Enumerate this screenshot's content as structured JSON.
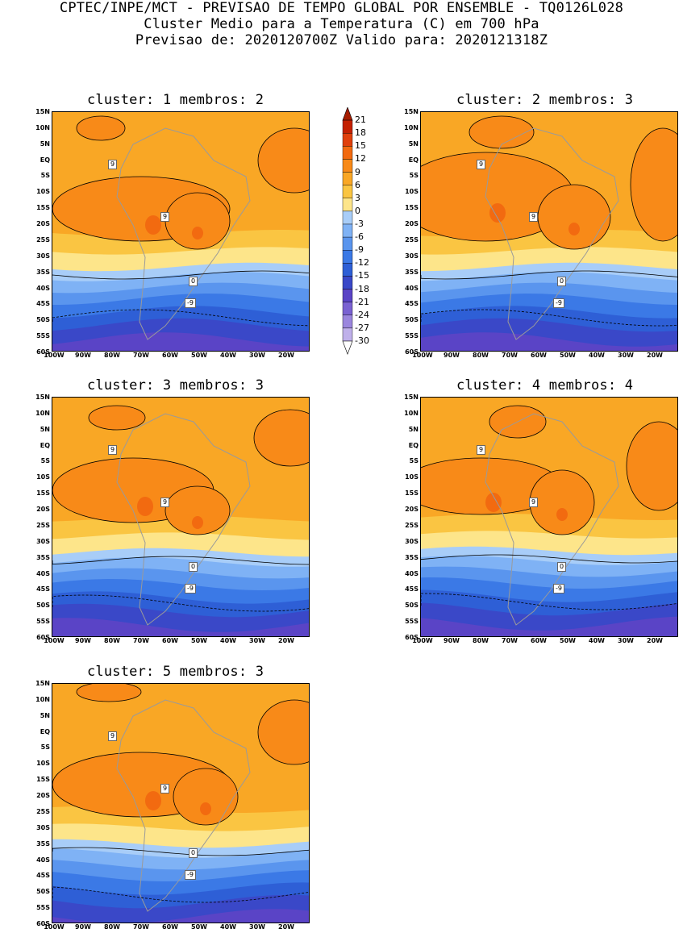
{
  "title": {
    "line1": "CPTEC/INPE/MCT - PREVISAO DE TEMPO GLOBAL POR ENSEMBLE - TQ0126L028",
    "line2": "Cluster Medio para a Temperatura (C) em 700 hPa",
    "line3": "Previsao de: 2020120700Z   Valido para: 2020121318Z"
  },
  "panels": [
    {
      "label": "cluster: 1  membros: 2"
    },
    {
      "label": "cluster: 2  membros: 3"
    },
    {
      "label": "cluster: 3  membros: 3"
    },
    {
      "label": "cluster: 4  membros: 4"
    },
    {
      "label": "cluster: 5  membros: 3"
    }
  ],
  "axes": {
    "lat_labels": [
      "15N",
      "10N",
      "5N",
      "EQ",
      "5S",
      "10S",
      "15S",
      "20S",
      "25S",
      "30S",
      "35S",
      "40S",
      "45S",
      "50S",
      "55S",
      "60S"
    ],
    "lon_labels": [
      "100W",
      "90W",
      "80W",
      "70W",
      "60W",
      "50W",
      "40W",
      "30W",
      "20W"
    ]
  },
  "contour_labels": {
    "warm": "9",
    "zero": "0",
    "cold": "-9"
  },
  "colorbar": {
    "levels": [
      "21",
      "18",
      "15",
      "12",
      "9",
      "6",
      "3",
      "0",
      "-3",
      "-6",
      "-9",
      "-12",
      "-15",
      "-18",
      "-21",
      "-24",
      "-27",
      "-30"
    ],
    "colors": [
      "#a61c00",
      "#c42000",
      "#e0400c",
      "#f26a10",
      "#f88a18",
      "#f9a725",
      "#fac542",
      "#fde58a",
      "#a8cdf8",
      "#7fb2f5",
      "#5a95ee",
      "#3b79e6",
      "#2e5fd6",
      "#3a48c8",
      "#5a44c6",
      "#7a62d2",
      "#9b86de",
      "#bfb0ea",
      "#ffffff"
    ]
  }
}
